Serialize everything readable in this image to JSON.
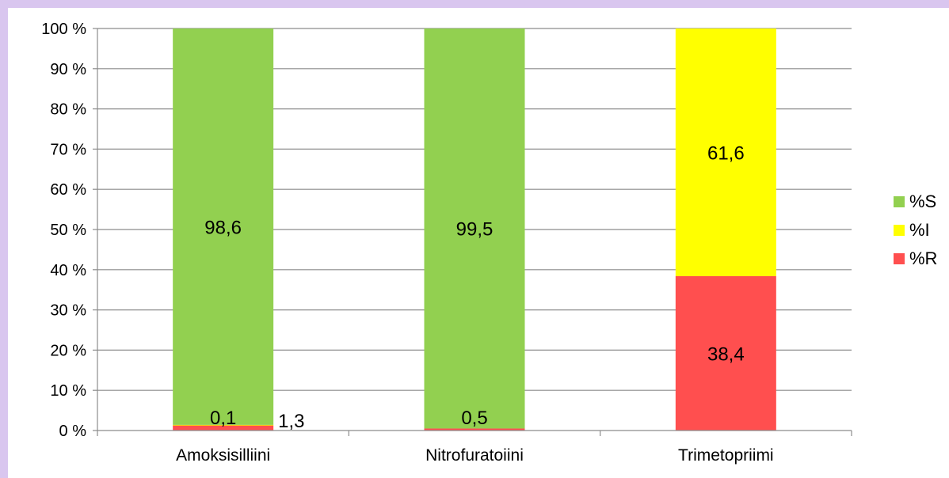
{
  "chart_data": {
    "type": "bar",
    "stacked": true,
    "categories": [
      "Amoksisilliini",
      "Nitrofuratoiini",
      "Trimetopriimi"
    ],
    "series": [
      {
        "name": "%R",
        "color": "#ff4f4f",
        "values": [
          1.3,
          0.5,
          38.4
        ],
        "labels": [
          "1,3",
          "0,5",
          "38,4"
        ]
      },
      {
        "name": "%I",
        "color": "#ffff00",
        "values": [
          0.1,
          0,
          61.6
        ],
        "labels": [
          "0,1",
          "",
          "61,6"
        ]
      },
      {
        "name": "%S",
        "color": "#92d050",
        "values": [
          98.6,
          99.5,
          0
        ],
        "labels": [
          "98,6",
          "99,5",
          ""
        ]
      }
    ],
    "y_ticks": [
      "0 %",
      "10 %",
      "20 %",
      "30 %",
      "40 %",
      "50 %",
      "60 %",
      "70 %",
      "80 %",
      "90 %",
      "100 %"
    ],
    "ylim": [
      0,
      100
    ],
    "grid": true,
    "legend": {
      "position": "right",
      "order": [
        "%S",
        "%I",
        "%R"
      ]
    },
    "title": "",
    "xlabel": "",
    "ylabel": ""
  }
}
